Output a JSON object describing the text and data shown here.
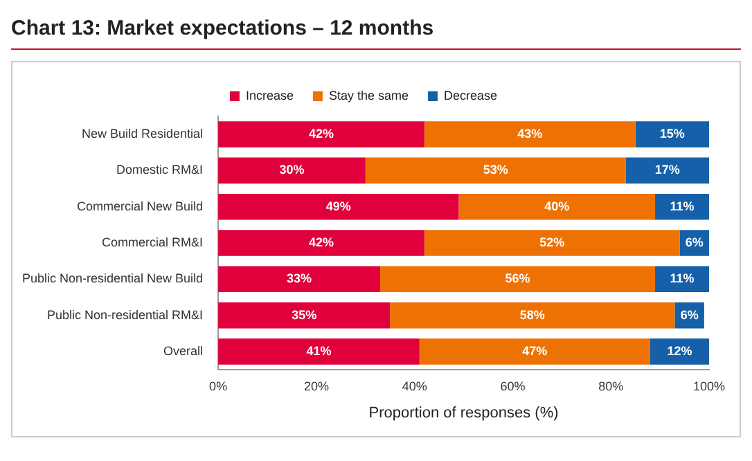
{
  "chart_data": {
    "type": "bar",
    "title": "Chart 13: Market expectations – 12 months",
    "orientation": "horizontal",
    "stacked": true,
    "categories": [
      "New Build Residential",
      "Domestic RM&I",
      "Commercial New Build",
      "Commercial RM&I",
      "Public Non-residential New Build",
      "Public Non-residential RM&I",
      "Overall"
    ],
    "series": [
      {
        "name": "Increase",
        "color": "#e0003c",
        "values": [
          42,
          30,
          49,
          42,
          33,
          35,
          41
        ],
        "value_labels": [
          "42%",
          "30%",
          "49%",
          "42%",
          "33%",
          "35%",
          "41%"
        ]
      },
      {
        "name": "Stay the same",
        "color": "#ee7203",
        "values": [
          43,
          53,
          40,
          52,
          56,
          58,
          47
        ],
        "value_labels": [
          "43%",
          "53%",
          "40%",
          "52%",
          "56%",
          "58%",
          "47%"
        ]
      },
      {
        "name": "Decrease",
        "color": "#1560a8",
        "values": [
          15,
          17,
          11,
          6,
          11,
          6,
          12
        ],
        "value_labels": [
          "15%",
          "17%",
          "11%",
          "6%",
          "11%",
          "6%",
          "12%"
        ]
      }
    ],
    "xlim": [
      0,
      100
    ],
    "xticks": [
      {
        "value": 0,
        "label": "0%"
      },
      {
        "value": 20,
        "label": "20%"
      },
      {
        "value": 40,
        "label": "40%"
      },
      {
        "value": 60,
        "label": "60%"
      },
      {
        "value": 80,
        "label": "80%"
      },
      {
        "value": 100,
        "label": "100%"
      }
    ],
    "xlabel": "Proportion of responses (%)",
    "legend": "top",
    "grid": false
  }
}
